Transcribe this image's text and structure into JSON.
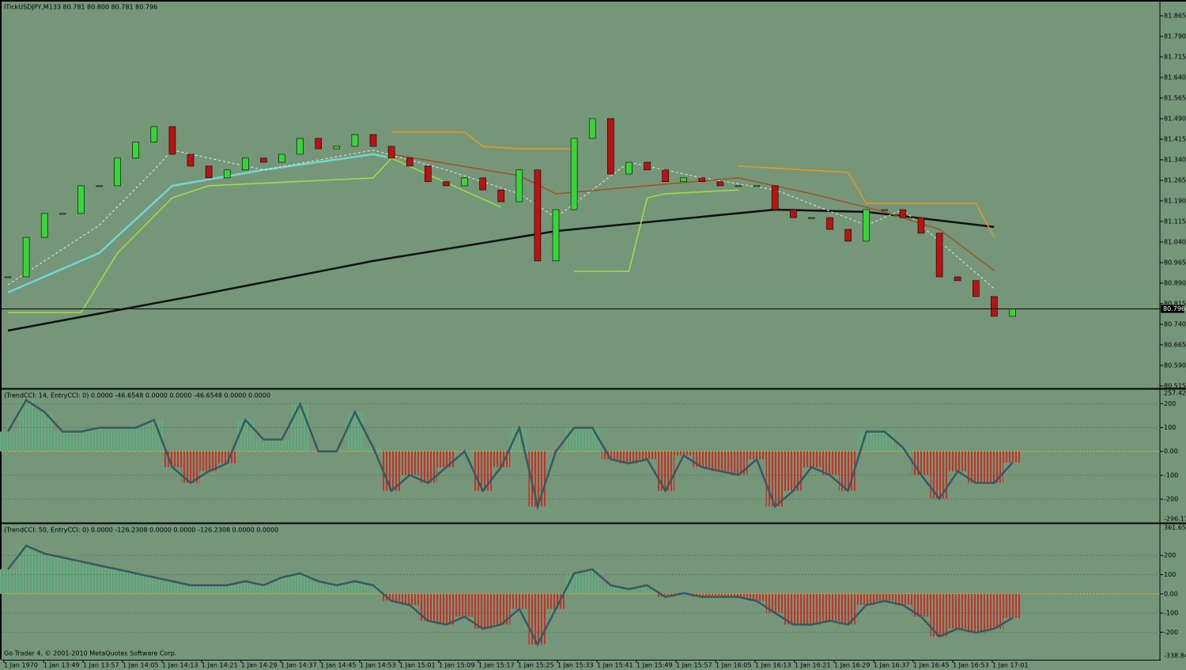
{
  "chart_data": [
    {
      "type": "candlestick",
      "title": "ITickUSDJPY,M133  80.781 80.800 80.781 80.796",
      "close": [
        80.913,
        81.057,
        81.144,
        81.144,
        81.245,
        81.245,
        81.346,
        81.404,
        81.461,
        81.36,
        81.317,
        81.274,
        81.303,
        81.346,
        81.331,
        81.36,
        81.418,
        81.38,
        81.389,
        81.432,
        81.389,
        81.346,
        81.317,
        81.26,
        81.245,
        81.274,
        81.23,
        81.187,
        81.303,
        80.971,
        81.158,
        81.418,
        81.49,
        81.288,
        81.331,
        81.303,
        81.26,
        81.274,
        81.26,
        81.245,
        81.245,
        81.245,
        81.158,
        81.129,
        81.129,
        81.086,
        81.043,
        81.158,
        81.158,
        81.129,
        81.072,
        80.913,
        80.899,
        80.841,
        80.769,
        80.796
      ],
      "up_color": "#38d438",
      "down_color": "#b81414",
      "current_price": 80.796,
      "ylim": [
        80.509,
        81.914
      ],
      "yticks": [
        81.865,
        {
          "value": 81.79,
          "label": "81.790"
        },
        81.715,
        {
          "value": 81.64,
          "label": "81.640"
        },
        81.565,
        {
          "value": 81.49,
          "label": "81.490"
        },
        81.415,
        {
          "value": 81.34,
          "label": "81.340"
        },
        81.265,
        {
          "value": 81.19,
          "label": "81.190"
        },
        81.115,
        {
          "value": 81.04,
          "label": "81.040"
        },
        80.965,
        {
          "value": 80.89,
          "label": "80.890"
        },
        80.815,
        {
          "value": 80.74,
          "label": "80.740"
        },
        80.665,
        {
          "value": 80.59,
          "label": "80.590"
        },
        80.515
      ],
      "lines": [
        {
          "color": "#101010",
          "width": 2.5,
          "dashed": false,
          "x": [
            0,
            10,
            20,
            30,
            42,
            47,
            54
          ],
          "values": [
            80.717,
            80.841,
            80.971,
            81.08,
            81.158,
            81.15,
            81.095
          ]
        },
        {
          "color": "#6fd8d0",
          "width": 2.5,
          "dashed": false,
          "x": [
            0,
            5,
            9,
            14,
            20,
            21
          ],
          "values": [
            80.856,
            81.0,
            81.245,
            81.303,
            81.36,
            81.346
          ]
        },
        {
          "color": "#e8f0e0",
          "width": 1,
          "dashed": true,
          "x": [
            0,
            5,
            8,
            9,
            14,
            20,
            24,
            28,
            30,
            32,
            34,
            38,
            42,
            47,
            49,
            52,
            54
          ],
          "values": [
            80.884,
            81.101,
            81.303,
            81.375,
            81.303,
            81.375,
            81.303,
            81.216,
            81.129,
            81.23,
            81.331,
            81.274,
            81.23,
            81.101,
            81.158,
            80.985,
            80.87
          ]
        },
        {
          "color": "#a0e040",
          "width": 1.5,
          "dashed": false,
          "x": [
            0,
            4,
            6,
            9,
            11,
            20,
            21,
            27,
            29,
            31,
            34,
            35,
            36,
            40
          ],
          "values": [
            80.783,
            80.783,
            81.0,
            81.201,
            81.245,
            81.274,
            81.346,
            81.167,
            null,
            80.933,
            80.933,
            81.201,
            81.216,
            81.23
          ]
        },
        {
          "color": "#e89a20",
          "width": 1.5,
          "dashed": false,
          "x": [
            21,
            25,
            26,
            28,
            31,
            35,
            40,
            46,
            47,
            53,
            54
          ],
          "values": [
            81.441,
            81.441,
            81.389,
            81.38,
            81.38,
            null,
            81.317,
            81.294,
            81.181,
            81.181,
            81.057
          ]
        },
        {
          "color": "#a05020",
          "width": 1.5,
          "dashed": false,
          "x": [
            21,
            28,
            30,
            40,
            44,
            48,
            51,
            54
          ],
          "values": [
            81.36,
            81.282,
            81.216,
            81.274,
            81.216,
            81.15,
            81.086,
            80.936
          ]
        }
      ],
      "time_labels": [
        "1 Jan 1970",
        "1 Jan 13:49",
        "1 Jan 13:57",
        "1 Jan 14:05",
        "1 Jan 14:13",
        "1 Jan 14:21",
        "1 Jan 14:29",
        "1 Jan 14:37",
        "1 Jan 14:45",
        "1 Jan 14:53",
        "1 Jan 15:01",
        "1 Jan 15:09",
        "1 Jan 15:17",
        "1 Jan 15:25",
        "1 Jan 15:33",
        "1 Jan 15:41",
        "1 Jan 15:49",
        "1 Jan 15:57",
        "1 Jan 16:05",
        "1 Jan 16:13",
        "1 Jan 16:21",
        "1 Jan 16:29",
        "1 Jan 16:37",
        "1 Jan 16:45",
        "1 Jan 16:53",
        "1 Jan 17:01"
      ]
    },
    {
      "type": "cci",
      "title": "(TrendCCI: 14, EntryCCI: 0)  0.0000 -46.6548 0.0000 0.0000 -46.6548 0.0000 0.0000",
      "values": [
        83,
        215,
        165,
        83,
        83,
        99,
        99,
        99,
        132,
        -66,
        -132,
        -83,
        -50,
        132,
        50,
        50,
        198,
        0,
        0,
        165,
        17,
        -165,
        -99,
        -132,
        -66,
        0,
        -165,
        -66,
        99,
        -231,
        0,
        99,
        99,
        -33,
        -50,
        -33,
        -165,
        -17,
        -66,
        -83,
        -99,
        -33,
        -231,
        -165,
        -66,
        -99,
        -165,
        83,
        83,
        17,
        -99,
        -198,
        -83,
        -132,
        -132,
        -47
      ],
      "pos_color": "#5fb080",
      "neg_color": "#c83028",
      "line_color": "#3a5862",
      "zero_color": "#f0b020",
      "grid": true,
      "ylim": [
        -296.112,
        257.426
      ],
      "yticks": [
        200,
        100,
        {
          "value": 0,
          "label": "0.00"
        },
        -100,
        -200
      ]
    },
    {
      "type": "cci",
      "title": "(TrendCCI: 50, EntryCCI: 0)  0.0000 -126.2308 0.0000 0.0000 -126.2308 0.0000 0.0000",
      "values": [
        128,
        251,
        210,
        189,
        169,
        148,
        128,
        107,
        86,
        66,
        45,
        45,
        45,
        66,
        45,
        86,
        107,
        66,
        45,
        66,
        45,
        -37,
        -58,
        -140,
        -160,
        -119,
        -181,
        -160,
        -78,
        -263,
        -78,
        107,
        128,
        45,
        25,
        45,
        -16,
        4,
        -16,
        -16,
        -16,
        -37,
        -99,
        -160,
        -160,
        -140,
        -160,
        -58,
        -37,
        -58,
        -119,
        -222,
        -181,
        -202,
        -181,
        -126
      ],
      "pos_color": "#5fb080",
      "neg_color": "#c83028",
      "line_color": "#3a5862",
      "zero_color": "#f0b020",
      "grid": true,
      "ylim": [
        -338.847,
        361.655
      ],
      "yticks": [
        200,
        100,
        {
          "value": 0,
          "label": "0.00"
        },
        -100,
        -200
      ]
    }
  ],
  "footer": "Go Trader 4, © 2001-2010 MetaQuotes Software Corp."
}
